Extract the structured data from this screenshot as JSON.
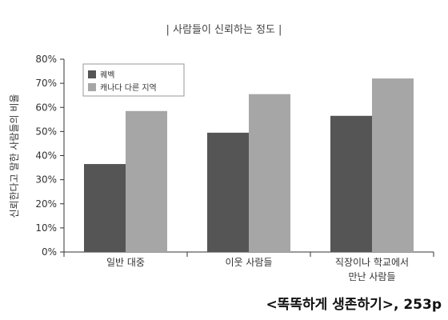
{
  "chart_data": {
    "type": "bar",
    "title": "| 사람들이 신뢰하는 정도 |",
    "ylabel": "신뢰한다고 말한 사람들의 비율",
    "xlabel": "",
    "ylim": [
      0,
      80
    ],
    "yticks": [
      "0%",
      "10%",
      "20%",
      "30%",
      "40%",
      "50%",
      "60%",
      "70%",
      "80%"
    ],
    "yticks_values": [
      0,
      10,
      20,
      30,
      40,
      50,
      60,
      70,
      80
    ],
    "categories": [
      [
        "일반 대중"
      ],
      [
        "이웃 사람들"
      ],
      [
        "직장이나 학교에서",
        "만난 사람들"
      ]
    ],
    "series": [
      {
        "name": "퀘벡",
        "color": "#555555",
        "values": [
          36.5,
          49.5,
          56.5
        ]
      },
      {
        "name": "캐나다 다른 지역",
        "color": "#a6a6a6",
        "values": [
          58.5,
          65.5,
          72
        ]
      }
    ],
    "legend_position": "top-left",
    "grid": false
  },
  "source": "<똑똑하게 생존하기>, 253p"
}
